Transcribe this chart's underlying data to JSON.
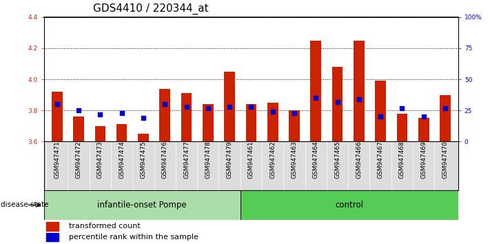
{
  "title": "GDS4410 / 220344_at",
  "samples": [
    "GSM947471",
    "GSM947472",
    "GSM947473",
    "GSM947474",
    "GSM947475",
    "GSM947476",
    "GSM947477",
    "GSM947478",
    "GSM947479",
    "GSM947461",
    "GSM947462",
    "GSM947463",
    "GSM947464",
    "GSM947465",
    "GSM947466",
    "GSM947467",
    "GSM947468",
    "GSM947469",
    "GSM947470"
  ],
  "transformed_count": [
    3.92,
    3.76,
    3.7,
    3.71,
    3.65,
    3.94,
    3.91,
    3.84,
    4.05,
    3.84,
    3.85,
    3.8,
    4.25,
    4.08,
    4.25,
    3.99,
    3.78,
    3.75,
    3.9
  ],
  "percentile_rank": [
    30,
    25,
    22,
    23,
    19,
    30,
    28,
    27,
    28,
    28,
    24,
    23,
    35,
    32,
    34,
    20,
    27,
    20,
    27
  ],
  "ylim_left": [
    3.6,
    4.4
  ],
  "ylim_right": [
    0,
    100
  ],
  "yticks_left": [
    3.6,
    3.8,
    4.0,
    4.2,
    4.4
  ],
  "yticks_right": [
    0,
    25,
    50,
    75,
    100
  ],
  "ytick_labels_right": [
    "0",
    "25",
    "50",
    "75",
    "100%"
  ],
  "bar_color": "#cc2200",
  "dot_color": "#0000cc",
  "group1_label": "infantile-onset Pompe",
  "group2_label": "control",
  "group1_count": 9,
  "group2_count": 10,
  "group1_color": "#aaddaa",
  "group2_color": "#55cc55",
  "disease_state_label": "disease state",
  "legend_bar_label": "transformed count",
  "legend_dot_label": "percentile rank within the sample",
  "bar_bottom": 3.6,
  "axis_label_color_left": "#cc2200",
  "axis_label_color_right": "#0000cc",
  "bar_width": 0.5,
  "dot_size": 25,
  "title_fontsize": 11,
  "tick_fontsize": 6.5,
  "group_fontsize": 8.5,
  "legend_fontsize": 8
}
